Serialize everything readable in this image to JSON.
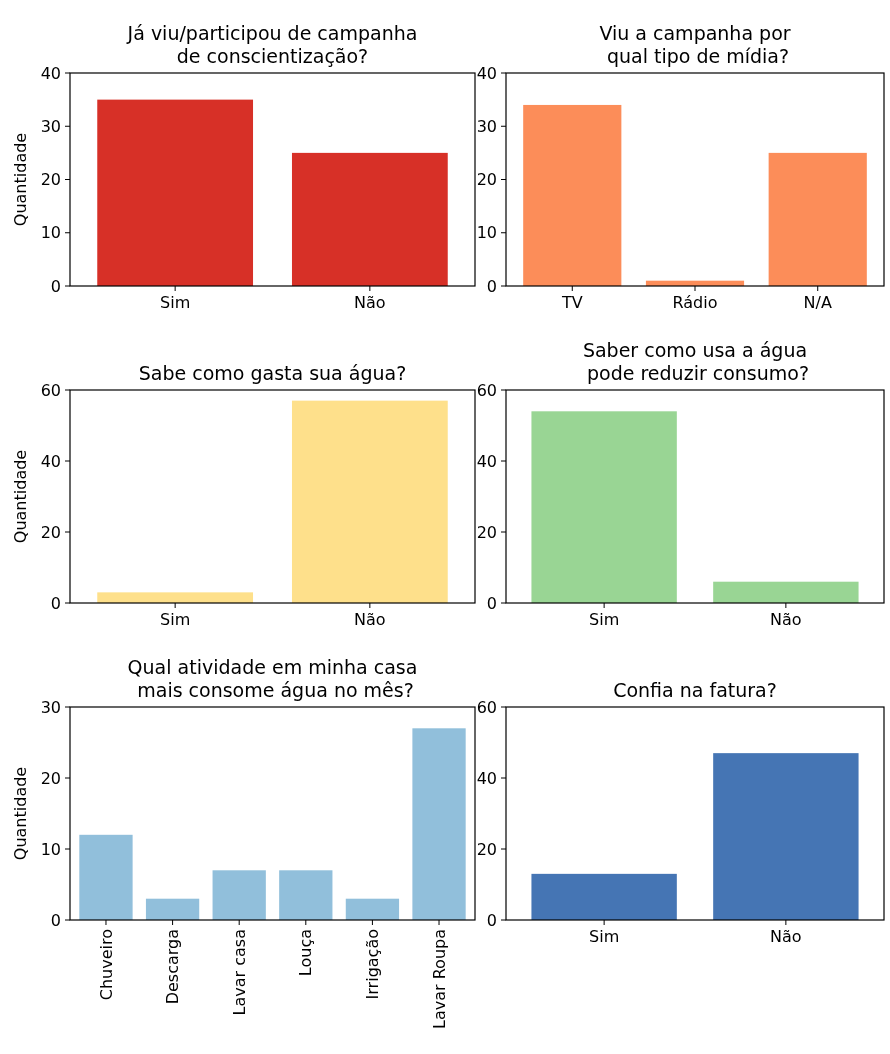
{
  "chart_data": [
    {
      "type": "bar",
      "title": "Já viu/participou de campanha\nde conscientização?",
      "ylabel": "Quantidade",
      "categories": [
        "Sim",
        "Não"
      ],
      "values": [
        35,
        25
      ],
      "color": "#d73027",
      "ylim": [
        0,
        40
      ],
      "yticks": [
        0,
        10,
        20,
        30,
        40
      ]
    },
    {
      "type": "bar",
      "title": "Viu a campanha por\n qual tipo de mídia?",
      "categories": [
        "TV",
        "Rádio",
        "N/A"
      ],
      "values": [
        34,
        1,
        25
      ],
      "color": "#fc8d59",
      "ylim": [
        0,
        40
      ],
      "yticks": [
        0,
        10,
        20,
        30,
        40
      ]
    },
    {
      "type": "bar",
      "title": "Sabe como gasta sua água?",
      "ylabel": "Quantidade",
      "categories": [
        "Sim",
        "Não"
      ],
      "values": [
        3,
        57
      ],
      "color": "#fee08b",
      "ylim": [
        0,
        60
      ],
      "yticks": [
        0,
        20,
        40,
        60
      ]
    },
    {
      "type": "bar",
      "title": "Saber como usa a água\n pode reduzir consumo?",
      "categories": [
        "Sim",
        "Não"
      ],
      "values": [
        54,
        6
      ],
      "color": "#99d594",
      "ylim": [
        0,
        60
      ],
      "yticks": [
        0,
        20,
        40,
        60
      ]
    },
    {
      "type": "bar",
      "title": "Qual atividade em minha casa\n mais consome água no mês?",
      "ylabel": "Quantidade",
      "categories": [
        "Chuveiro",
        "Descarga",
        "Lavar casa",
        "Louça",
        "Irrigação",
        "Lavar Roupa"
      ],
      "values": [
        12,
        3,
        7,
        7,
        3,
        27
      ],
      "color": "#91bfdb",
      "ylim": [
        0,
        30
      ],
      "yticks": [
        0,
        10,
        20,
        30
      ]
    },
    {
      "type": "bar",
      "title": "Confia na fatura?",
      "categories": [
        "Sim",
        "Não"
      ],
      "values": [
        13,
        47
      ],
      "color": "#4575b4",
      "ylim": [
        0,
        60
      ],
      "yticks": [
        0,
        20,
        40,
        60
      ]
    }
  ]
}
